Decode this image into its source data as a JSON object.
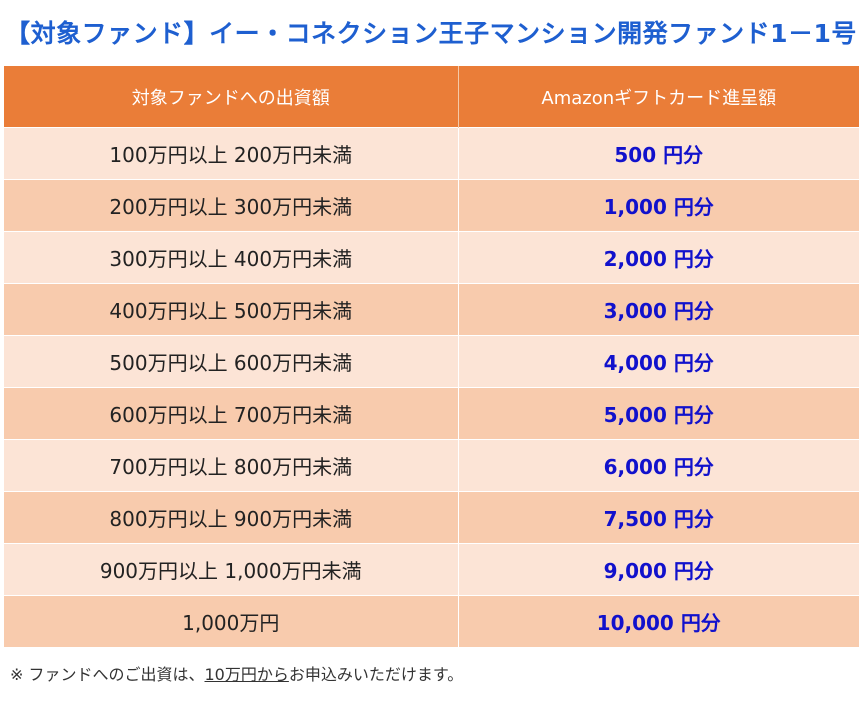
{
  "title": "【対象ファンド】イー・コネクション王子マンション開発ファンド1－1号",
  "table": {
    "headers": [
      "対象ファンドへの出資額",
      "Amazonギフトカード進呈額"
    ],
    "rows": [
      {
        "amount": "100万円以上 200万円未満",
        "gift": "500 円分"
      },
      {
        "amount": "200万円以上 300万円未満",
        "gift": "1,000 円分"
      },
      {
        "amount": "300万円以上 400万円未満",
        "gift": "2,000 円分"
      },
      {
        "amount": "400万円以上 500万円未満",
        "gift": "3,000 円分"
      },
      {
        "amount": "500万円以上 600万円未満",
        "gift": "4,000 円分"
      },
      {
        "amount": "600万円以上 700万円未満",
        "gift": "5,000 円分"
      },
      {
        "amount": "700万円以上 800万円未満",
        "gift": "6,000 円分"
      },
      {
        "amount": "800万円以上 900万円未満",
        "gift": "7,500 円分"
      },
      {
        "amount": "900万円以上 1,000万円未満",
        "gift": "9,000 円分"
      },
      {
        "amount": "1,000万円",
        "gift": "10,000 円分"
      }
    ]
  },
  "footnote": {
    "prefix": "※ ファンドへのご出資は、",
    "underlined": "10万円から",
    "suffix": "お申込みいただけます。"
  },
  "colors": {
    "title": "#1e5fd0",
    "header_bg": "#ea7d38",
    "row_light": "#fce4d6",
    "row_dark": "#f8cbad",
    "gift_text": "#1111cc"
  }
}
